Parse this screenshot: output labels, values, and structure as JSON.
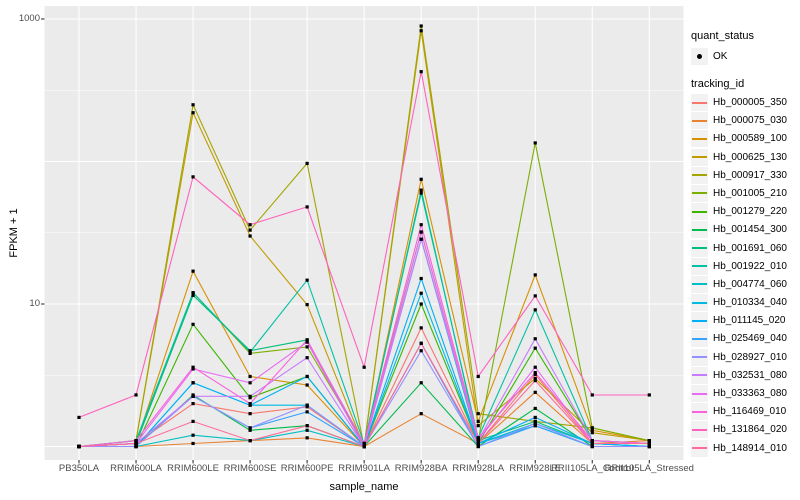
{
  "chart_data": {
    "type": "line",
    "title": "",
    "xlabel": "sample_name",
    "ylabel": "FPKM + 1",
    "y_scale": "log10",
    "ylim": [
      1,
      1000
    ],
    "y_tick_values": [
      10,
      1000
    ],
    "y_tick_labels": [
      "10",
      "1000"
    ],
    "grid": true,
    "legend_position": "right",
    "point_shape": "small black square (quant_status OK)",
    "categories": [
      "PB350LA",
      "RRIM600LA",
      "RRIM600LE",
      "RRIM600SE",
      "RRIM600PE",
      "RRIM901LA",
      "RRIM928BA",
      "RRIM928LA",
      "RRIM928LE",
      "RRII105LA_Control",
      "RRII105LA_Stressed"
    ],
    "series": [
      {
        "name": "Hb_000005_350",
        "color": "#F8766D",
        "values": [
          1.0,
          1.05,
          2.0,
          1.7,
          1.9,
          1.0,
          6.8,
          1.05,
          3.2,
          1.05,
          1.05
        ]
      },
      {
        "name": "Hb_000075_030",
        "color": "#EA8331",
        "values": [
          1.0,
          1.0,
          1.05,
          1.1,
          1.15,
          1.0,
          1.7,
          1.05,
          2.4,
          1.05,
          1.1
        ]
      },
      {
        "name": "Hb_000589_100",
        "color": "#D89000",
        "values": [
          1.0,
          1.05,
          17,
          3.1,
          2.7,
          1.0,
          75,
          1.5,
          16,
          1.3,
          1.1
        ]
      },
      {
        "name": "Hb_000625_130",
        "color": "#C09B00",
        "values": [
          1.0,
          1.1,
          220,
          30,
          9.9,
          1.0,
          827,
          1.4,
          3.0,
          1.25,
          1.1
        ]
      },
      {
        "name": "Hb_000917_330",
        "color": "#A3A500",
        "values": [
          1.0,
          1.1,
          250,
          33,
          97,
          1.0,
          893,
          1.7,
          1.5,
          1.35,
          1.1
        ]
      },
      {
        "name": "Hb_001005_210",
        "color": "#7CAE00",
        "values": [
          1.0,
          1.05,
          12,
          4.5,
          5.0,
          1.05,
          32,
          1.1,
          135,
          1.35,
          1.1
        ]
      },
      {
        "name": "Hb_001279_220",
        "color": "#39B600",
        "values": [
          1.0,
          1.0,
          7.2,
          2.2,
          3.1,
          1.0,
          10,
          1.05,
          4.9,
          1.1,
          1.05
        ]
      },
      {
        "name": "Hb_001454_300",
        "color": "#00BB4E",
        "values": [
          1.0,
          1.0,
          2.3,
          1.3,
          1.4,
          1.0,
          2.8,
          1.0,
          1.85,
          1.0,
          1.0
        ]
      },
      {
        "name": "Hb_001691_060",
        "color": "#00BF7D",
        "values": [
          1.0,
          1.05,
          11.5,
          4.7,
          5.6,
          1.0,
          63,
          1.1,
          1.5,
          1.05,
          1.0
        ]
      },
      {
        "name": "Hb_001922_010",
        "color": "#00C1A3",
        "values": [
          1.0,
          1.1,
          12,
          4.6,
          14.7,
          1.05,
          60,
          1.15,
          9.1,
          1.1,
          1.05
        ]
      },
      {
        "name": "Hb_004774_060",
        "color": "#00BFC4",
        "values": [
          1.0,
          1.0,
          1.2,
          1.1,
          1.3,
          1.0,
          28.5,
          1.05,
          1.4,
          1.0,
          1.0
        ]
      },
      {
        "name": "Hb_010334_040",
        "color": "#00BAE0",
        "values": [
          1.0,
          1.0,
          2.8,
          1.95,
          1.95,
          1.0,
          11.9,
          1.05,
          1.45,
          1.05,
          1.0
        ]
      },
      {
        "name": "Hb_011145_020",
        "color": "#00B0F6",
        "values": [
          1.0,
          1.0,
          2.8,
          1.95,
          3.1,
          1.0,
          15.1,
          1.05,
          1.6,
          1.05,
          1.0
        ]
      },
      {
        "name": "Hb_025469_040",
        "color": "#35A2FF",
        "values": [
          1.0,
          1.05,
          2.25,
          1.35,
          1.75,
          1.0,
          5.3,
          1.0,
          1.4,
          1.0,
          1.0
        ]
      },
      {
        "name": "Hb_028927_010",
        "color": "#9590FF",
        "values": [
          1.0,
          1.0,
          2.25,
          1.35,
          1.95,
          1.0,
          4.7,
          1.0,
          1.45,
          1.0,
          1.0
        ]
      },
      {
        "name": "Hb_032531_080",
        "color": "#C77CFF",
        "values": [
          1.0,
          1.05,
          2.25,
          2.25,
          4.2,
          1.0,
          28.5,
          1.1,
          5.7,
          1.1,
          1.05
        ]
      },
      {
        "name": "Hb_033363_080",
        "color": "#E76BF3",
        "values": [
          1.0,
          1.05,
          3.5,
          2.8,
          5.4,
          1.0,
          32,
          1.1,
          3.6,
          1.05,
          1.05
        ]
      },
      {
        "name": "Hb_116469_010",
        "color": "#FA62DB",
        "values": [
          1.0,
          1.1,
          3.6,
          2.0,
          5.6,
          1.05,
          36,
          1.15,
          3.3,
          1.1,
          1.05
        ]
      },
      {
        "name": "Hb_131864_020",
        "color": "#FF62BC",
        "values": [
          1.6,
          2.3,
          78,
          36,
          48,
          3.6,
          427,
          3.1,
          11.4,
          2.3,
          2.3
        ]
      },
      {
        "name": "Hb_148914_010",
        "color": "#FF6A98",
        "values": [
          1.0,
          1.05,
          1.5,
          1.1,
          1.4,
          1.0,
          5.3,
          1.05,
          2.9,
          1.05,
          1.05
        ]
      }
    ]
  },
  "axes": {
    "x_title": "sample_name",
    "y_title": "FPKM + 1"
  },
  "legend": {
    "quant_title": "quant_status",
    "quant_items": [
      {
        "label": "OK",
        "marker": "point-icon"
      }
    ],
    "tracking_title": "tracking_id"
  },
  "colors": {
    "panel_bg": "#EBEBEB",
    "grid_major": "#FFFFFF",
    "grid_minor": "#FFFFFF",
    "tick": "#333333",
    "tick_text": "#4D4D4D",
    "point": "#000000",
    "legend_key_bg": "#F2F2F2"
  }
}
